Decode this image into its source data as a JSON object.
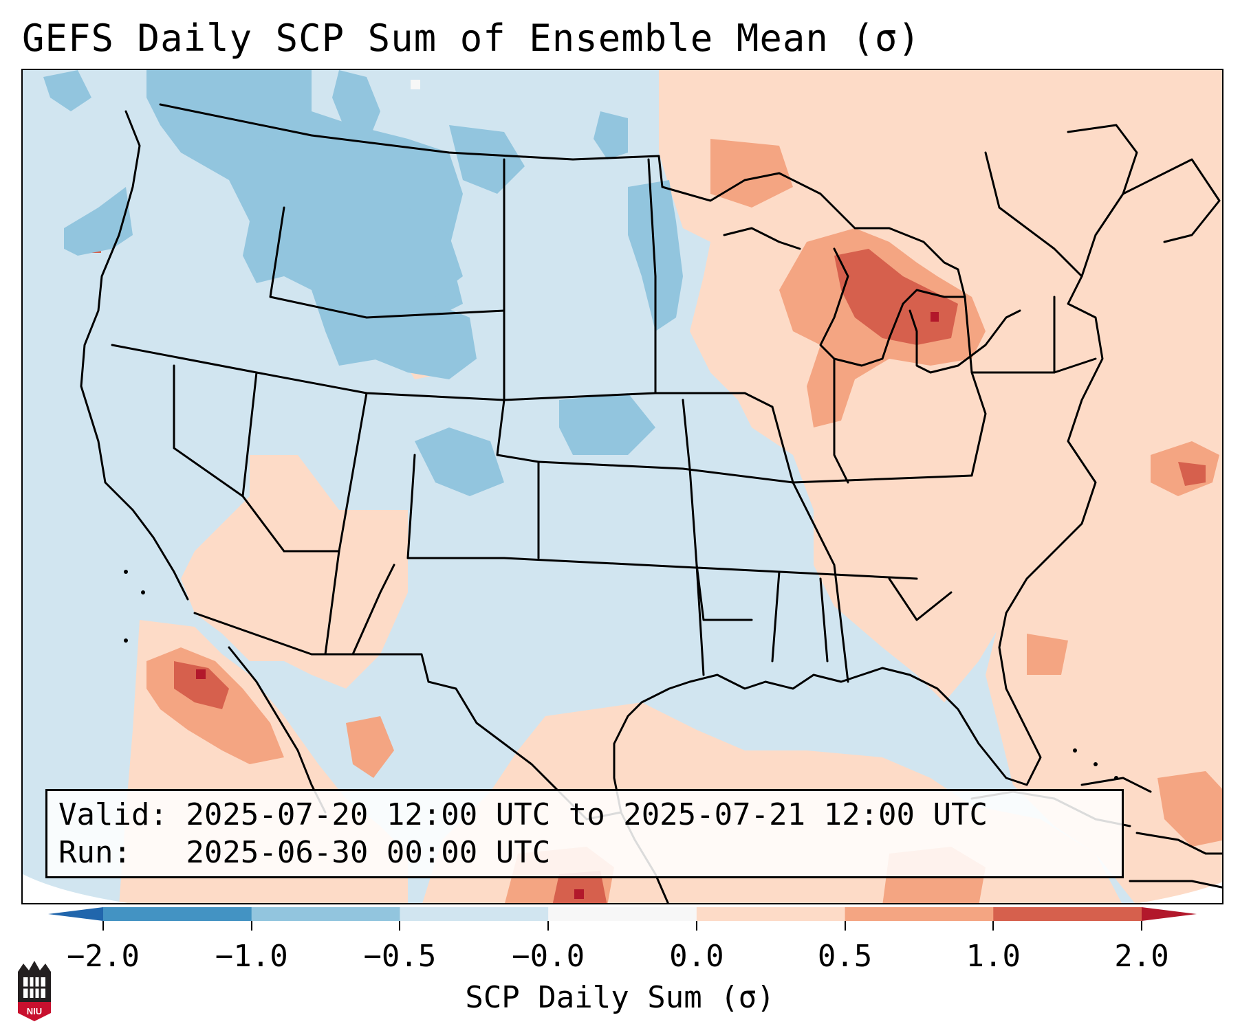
{
  "title": "GEFS Daily SCP Sum of Ensemble Mean (σ)",
  "info": {
    "valid_line": "Valid: 2025-07-20 12:00 UTC to 2025-07-21 12:00 UTC",
    "run_line": "Run:   2025-06-30 00:00 UTC"
  },
  "colorbar": {
    "label": "SCP Daily Sum (σ)",
    "ticks": [
      "−2.0",
      "−1.0",
      "−0.5",
      "−0.0",
      "0.0",
      "0.5",
      "1.0",
      "2.0"
    ],
    "colors": [
      "#4393c3",
      "#92c5de",
      "#d1e5f0",
      "#f7f7f7",
      "#fddbc7",
      "#f4a582",
      "#d6604d"
    ],
    "extend_low_color": "#2166ac",
    "extend_high_color": "#b2182b"
  },
  "map": {
    "background_color": "#d1e5f0",
    "outline_color": "#000000"
  },
  "logo": {
    "text": "NIU",
    "color": "#c8102e"
  }
}
